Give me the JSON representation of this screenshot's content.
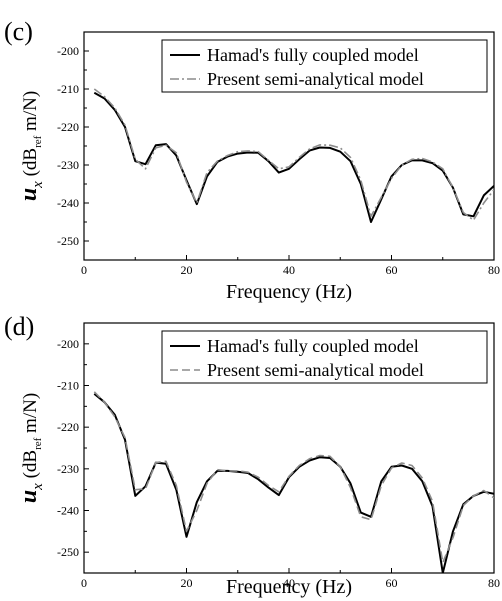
{
  "chart_data": [
    {
      "type": "line",
      "panel_label": "(c)",
      "xlabel": "Frequency (Hz)",
      "ylabel_main": "u",
      "ylabel_sub": "x",
      "ylabel_unit_open": " (dB",
      "ylabel_unit_sub": "ref",
      "ylabel_unit_close": " m/N)",
      "xlim": [
        0,
        80
      ],
      "ylim": [
        -255,
        -195
      ],
      "xticks": [
        "0",
        "20",
        "40",
        "60",
        "80"
      ],
      "yticks": [
        "-250",
        "-240",
        "-230",
        "-220",
        "-210",
        "-200"
      ],
      "legend_position": "top-right",
      "series": [
        {
          "name": "Hamad's fully coupled model",
          "color": "#000000",
          "style": "solid",
          "x": [
            2,
            4,
            6,
            8,
            10,
            12,
            14,
            16,
            18,
            20,
            22,
            24,
            26,
            28,
            30,
            32,
            34,
            36,
            38,
            40,
            42,
            44,
            46,
            48,
            50,
            52,
            54,
            56,
            58,
            60,
            62,
            64,
            66,
            68,
            70,
            72,
            74,
            76,
            78,
            80
          ],
          "y": [
            -211,
            -212.5,
            -215.5,
            -220,
            -229,
            -229.8,
            -224.8,
            -224.5,
            -227.5,
            -234,
            -240.3,
            -233,
            -229.2,
            -227.8,
            -227,
            -226.7,
            -226.8,
            -229,
            -232,
            -231,
            -228.5,
            -226.2,
            -225.4,
            -225.5,
            -226.5,
            -229,
            -235,
            -245,
            -239,
            -233,
            -230,
            -228.8,
            -228.8,
            -229.5,
            -231.5,
            -236,
            -243,
            -243.5,
            -238,
            -235.5
          ]
        },
        {
          "name": "Present semi-analytical model",
          "color": "#8c8c8c",
          "style": "dashdot",
          "x": [
            2,
            4,
            6,
            8,
            10,
            12,
            14,
            16,
            18,
            20,
            22,
            24,
            26,
            28,
            30,
            32,
            34,
            36,
            38,
            40,
            42,
            44,
            46,
            48,
            50,
            52,
            54,
            56,
            58,
            60,
            62,
            64,
            66,
            68,
            70,
            72,
            74,
            76,
            78,
            80
          ],
          "y": [
            -210,
            -212,
            -215,
            -219.5,
            -228.5,
            -231,
            -225.5,
            -224.8,
            -226.8,
            -234.5,
            -240,
            -232,
            -229,
            -227.5,
            -226.5,
            -226.3,
            -226.5,
            -228.8,
            -231,
            -230.5,
            -228,
            -225.8,
            -224.7,
            -224.8,
            -225.5,
            -228,
            -234,
            -243.5,
            -238.5,
            -233.5,
            -230,
            -228.5,
            -228.3,
            -229.2,
            -231,
            -236,
            -242.5,
            -244.5,
            -240,
            -236.5
          ]
        }
      ]
    },
    {
      "type": "line",
      "panel_label": "(d)",
      "xlabel": "Frequency (Hz)",
      "ylabel_main": "u",
      "ylabel_sub": "x",
      "ylabel_unit_open": " (dB",
      "ylabel_unit_sub": "ref",
      "ylabel_unit_close": " m/N)",
      "xlim": [
        0,
        80
      ],
      "ylim": [
        -255,
        -195
      ],
      "xticks": [
        "0",
        "20",
        "40",
        "60",
        "80"
      ],
      "yticks": [
        "-250",
        "-240",
        "-230",
        "-220",
        "-210",
        "-200"
      ],
      "legend_position": "top-right",
      "series": [
        {
          "name": "Hamad's fully coupled model",
          "color": "#000000",
          "style": "solid",
          "x": [
            2,
            4,
            6,
            8,
            10,
            12,
            14,
            16,
            18,
            20,
            22,
            24,
            26,
            28,
            30,
            32,
            34,
            36,
            38,
            40,
            42,
            44,
            46,
            48,
            50,
            52,
            54,
            56,
            58,
            60,
            62,
            64,
            66,
            68,
            70,
            72,
            74,
            76,
            78,
            80
          ],
          "y": [
            -212,
            -214,
            -217,
            -223,
            -236.5,
            -234.2,
            -228.5,
            -228.8,
            -235,
            -246.3,
            -238,
            -233,
            -230.5,
            -230.5,
            -230.7,
            -231,
            -232.5,
            -234.5,
            -236.3,
            -232,
            -229.5,
            -228,
            -227.2,
            -227.4,
            -229.5,
            -233.5,
            -240.5,
            -241.5,
            -233,
            -229.5,
            -229.2,
            -230,
            -233,
            -239,
            -255,
            -245,
            -238.5,
            -236.5,
            -235.5,
            -236
          ]
        },
        {
          "name": "Present semi-analytical model",
          "color": "#8c8c8c",
          "style": "dashed",
          "x": [
            2,
            4,
            6,
            8,
            10,
            12,
            14,
            16,
            18,
            20,
            22,
            24,
            26,
            28,
            30,
            32,
            34,
            36,
            38,
            40,
            42,
            44,
            46,
            48,
            50,
            52,
            54,
            56,
            58,
            60,
            62,
            64,
            66,
            68,
            70,
            72,
            74,
            76,
            78,
            80
          ],
          "y": [
            -211.5,
            -214,
            -217.5,
            -222.5,
            -235,
            -234.8,
            -228.5,
            -228.2,
            -234,
            -245,
            -240,
            -233.5,
            -230.2,
            -230.5,
            -230.5,
            -230.8,
            -232,
            -234,
            -235.5,
            -231.8,
            -229.2,
            -227.6,
            -226.8,
            -227,
            -229.5,
            -234.5,
            -241.5,
            -242.2,
            -234,
            -229.8,
            -228.6,
            -229.2,
            -232.2,
            -237.8,
            -252.5,
            -246.5,
            -238.8,
            -236.5,
            -235.2,
            -237
          ]
        }
      ]
    }
  ]
}
